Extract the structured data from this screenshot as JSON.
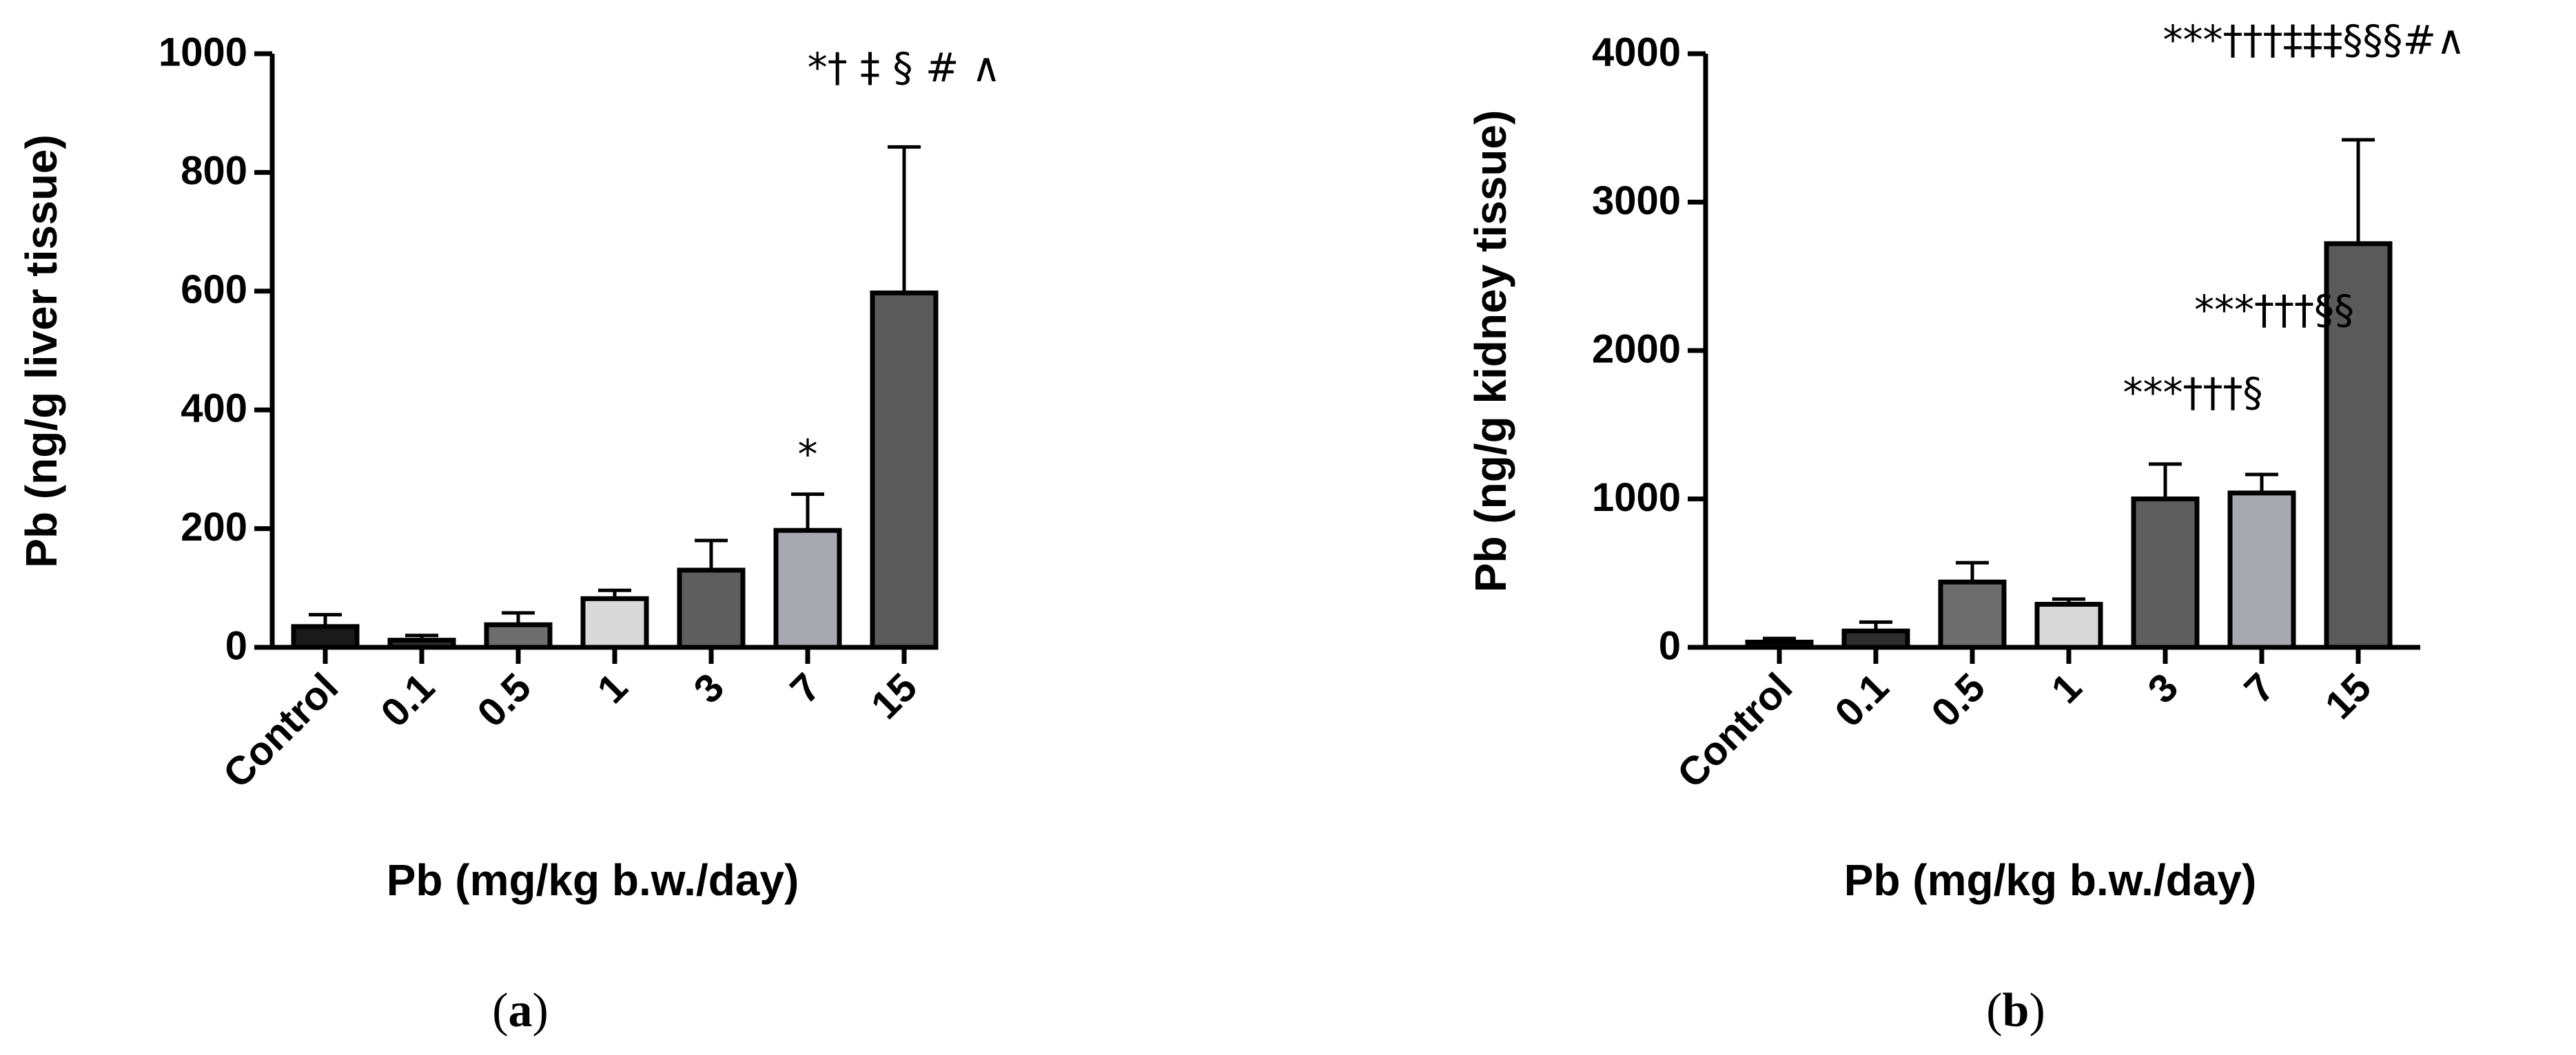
{
  "panels": [
    {
      "label_open": "(",
      "label_letter": "a",
      "label_close": ")"
    },
    {
      "label_open": "(",
      "label_letter": "b",
      "label_close": ")"
    }
  ],
  "chart_data": [
    {
      "type": "bar",
      "categories": [
        "Control",
        "0.1",
        "0.5",
        "1",
        "3",
        "7",
        "15"
      ],
      "values": [
        35,
        12,
        38,
        82,
        130,
        197,
        597
      ],
      "error_upper": [
        55,
        20,
        58,
        96,
        180,
        258,
        843
      ],
      "bar_colors": [
        "#1a1a1a",
        "#2e2e2e",
        "#6d6d6d",
        "#d9d9d9",
        "#5e5e5e",
        "#a8a8b0",
        "#5a5a5a"
      ],
      "annotations": [
        {
          "category": "7",
          "text": "*"
        },
        {
          "category": "15",
          "text": "*† ‡ § # ∧"
        }
      ],
      "ylabel": "Pb (ng/g liver tissue)",
      "xlabel": "Pb (mg/kg b.w./day)",
      "ylim": [
        0,
        1000
      ],
      "yticks": [
        0,
        200,
        400,
        600,
        800,
        1000
      ],
      "grid": false
    },
    {
      "type": "bar",
      "categories": [
        "Control",
        "0.1",
        "0.5",
        "1",
        "3",
        "7",
        "15"
      ],
      "values": [
        35,
        110,
        440,
        290,
        1000,
        1040,
        2720
      ],
      "error_upper": [
        60,
        170,
        570,
        325,
        1235,
        1165,
        3420
      ],
      "bar_colors": [
        "#1a1a1a",
        "#2e2e2e",
        "#6d6d6d",
        "#d9d9d9",
        "#5e5e5e",
        "#a8a8b0",
        "#5a5a5a"
      ],
      "annotations": [
        {
          "category": "3",
          "text": "***†††§"
        },
        {
          "category": "7",
          "text": "***†††§§"
        },
        {
          "category": "15",
          "text": "***†††‡‡‡§§§#∧"
        }
      ],
      "ylabel": "Pb (ng/g kidney tissue)",
      "xlabel": "Pb (mg/kg b.w./day)",
      "ylim": [
        0,
        4000
      ],
      "yticks": [
        0,
        1000,
        2000,
        3000,
        4000
      ],
      "grid": false
    }
  ]
}
